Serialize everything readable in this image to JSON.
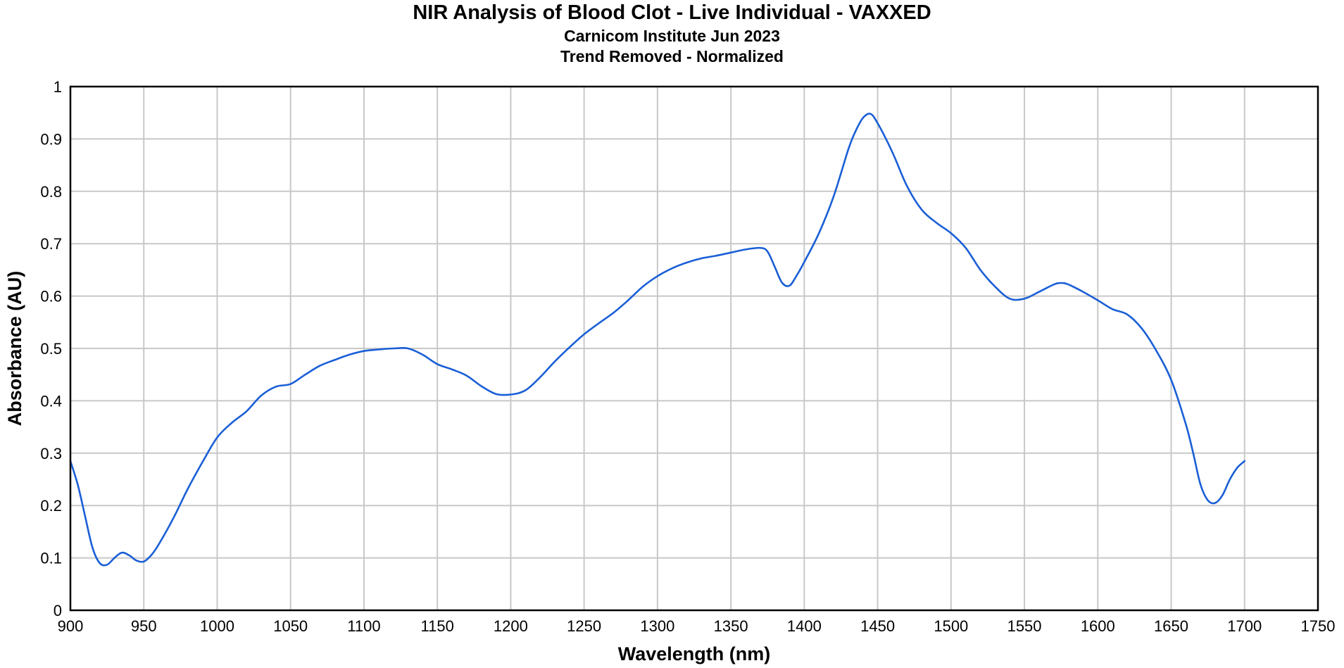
{
  "chart_data": {
    "type": "line",
    "title": "NIR Analysis of Blood Clot - Live Individual - VAXXED",
    "subtitle": "Carnicom Institute Jun 2023",
    "subtitle2": "Trend Removed - Normalized",
    "xlabel": "Wavelength (nm)",
    "ylabel": "Absorbance (AU)",
    "xlim": [
      900,
      1750
    ],
    "ylim": [
      0,
      1
    ],
    "xticks": [
      "900",
      "950",
      "1000",
      "1050",
      "1100",
      "1150",
      "1200",
      "1250",
      "1300",
      "1350",
      "1400",
      "1450",
      "1500",
      "1550",
      "1600",
      "1650",
      "1700",
      "1750"
    ],
    "yticks": [
      "0",
      "0.1",
      "0.2",
      "0.3",
      "0.4",
      "0.5",
      "0.6",
      "0.7",
      "0.8",
      "0.9",
      "1"
    ],
    "grid": true,
    "line_color": "#1a5fd6",
    "series": [
      {
        "x": [
          900,
          905,
          910,
          915,
          920,
          925,
          930,
          935,
          940,
          945,
          950,
          955,
          960,
          970,
          980,
          990,
          1000,
          1010,
          1020,
          1030,
          1040,
          1050,
          1060,
          1070,
          1080,
          1090,
          1100,
          1110,
          1120,
          1130,
          1140,
          1150,
          1160,
          1170,
          1180,
          1190,
          1200,
          1210,
          1220,
          1230,
          1240,
          1250,
          1260,
          1270,
          1280,
          1290,
          1300,
          1310,
          1320,
          1330,
          1340,
          1350,
          1360,
          1370,
          1375,
          1380,
          1385,
          1390,
          1395,
          1400,
          1410,
          1420,
          1430,
          1435,
          1440,
          1445,
          1450,
          1460,
          1470,
          1480,
          1490,
          1500,
          1510,
          1520,
          1530,
          1540,
          1550,
          1560,
          1570,
          1575,
          1580,
          1590,
          1600,
          1610,
          1620,
          1630,
          1640,
          1650,
          1660,
          1665,
          1670,
          1675,
          1680,
          1685,
          1690,
          1695,
          1700
        ],
        "y": [
          0.285,
          0.24,
          0.18,
          0.12,
          0.09,
          0.087,
          0.1,
          0.11,
          0.105,
          0.095,
          0.093,
          0.105,
          0.125,
          0.175,
          0.232,
          0.283,
          0.33,
          0.358,
          0.38,
          0.41,
          0.427,
          0.432,
          0.45,
          0.467,
          0.478,
          0.488,
          0.495,
          0.498,
          0.5,
          0.5,
          0.488,
          0.47,
          0.46,
          0.448,
          0.428,
          0.413,
          0.412,
          0.42,
          0.445,
          0.475,
          0.502,
          0.527,
          0.548,
          0.568,
          0.592,
          0.618,
          0.638,
          0.653,
          0.664,
          0.672,
          0.677,
          0.683,
          0.689,
          0.692,
          0.685,
          0.655,
          0.625,
          0.62,
          0.64,
          0.665,
          0.72,
          0.79,
          0.88,
          0.915,
          0.94,
          0.948,
          0.93,
          0.875,
          0.81,
          0.765,
          0.74,
          0.72,
          0.692,
          0.65,
          0.618,
          0.595,
          0.595,
          0.608,
          0.622,
          0.625,
          0.622,
          0.608,
          0.592,
          0.575,
          0.565,
          0.538,
          0.495,
          0.44,
          0.355,
          0.3,
          0.24,
          0.21,
          0.205,
          0.22,
          0.25,
          0.272,
          0.285
        ]
      }
    ]
  }
}
